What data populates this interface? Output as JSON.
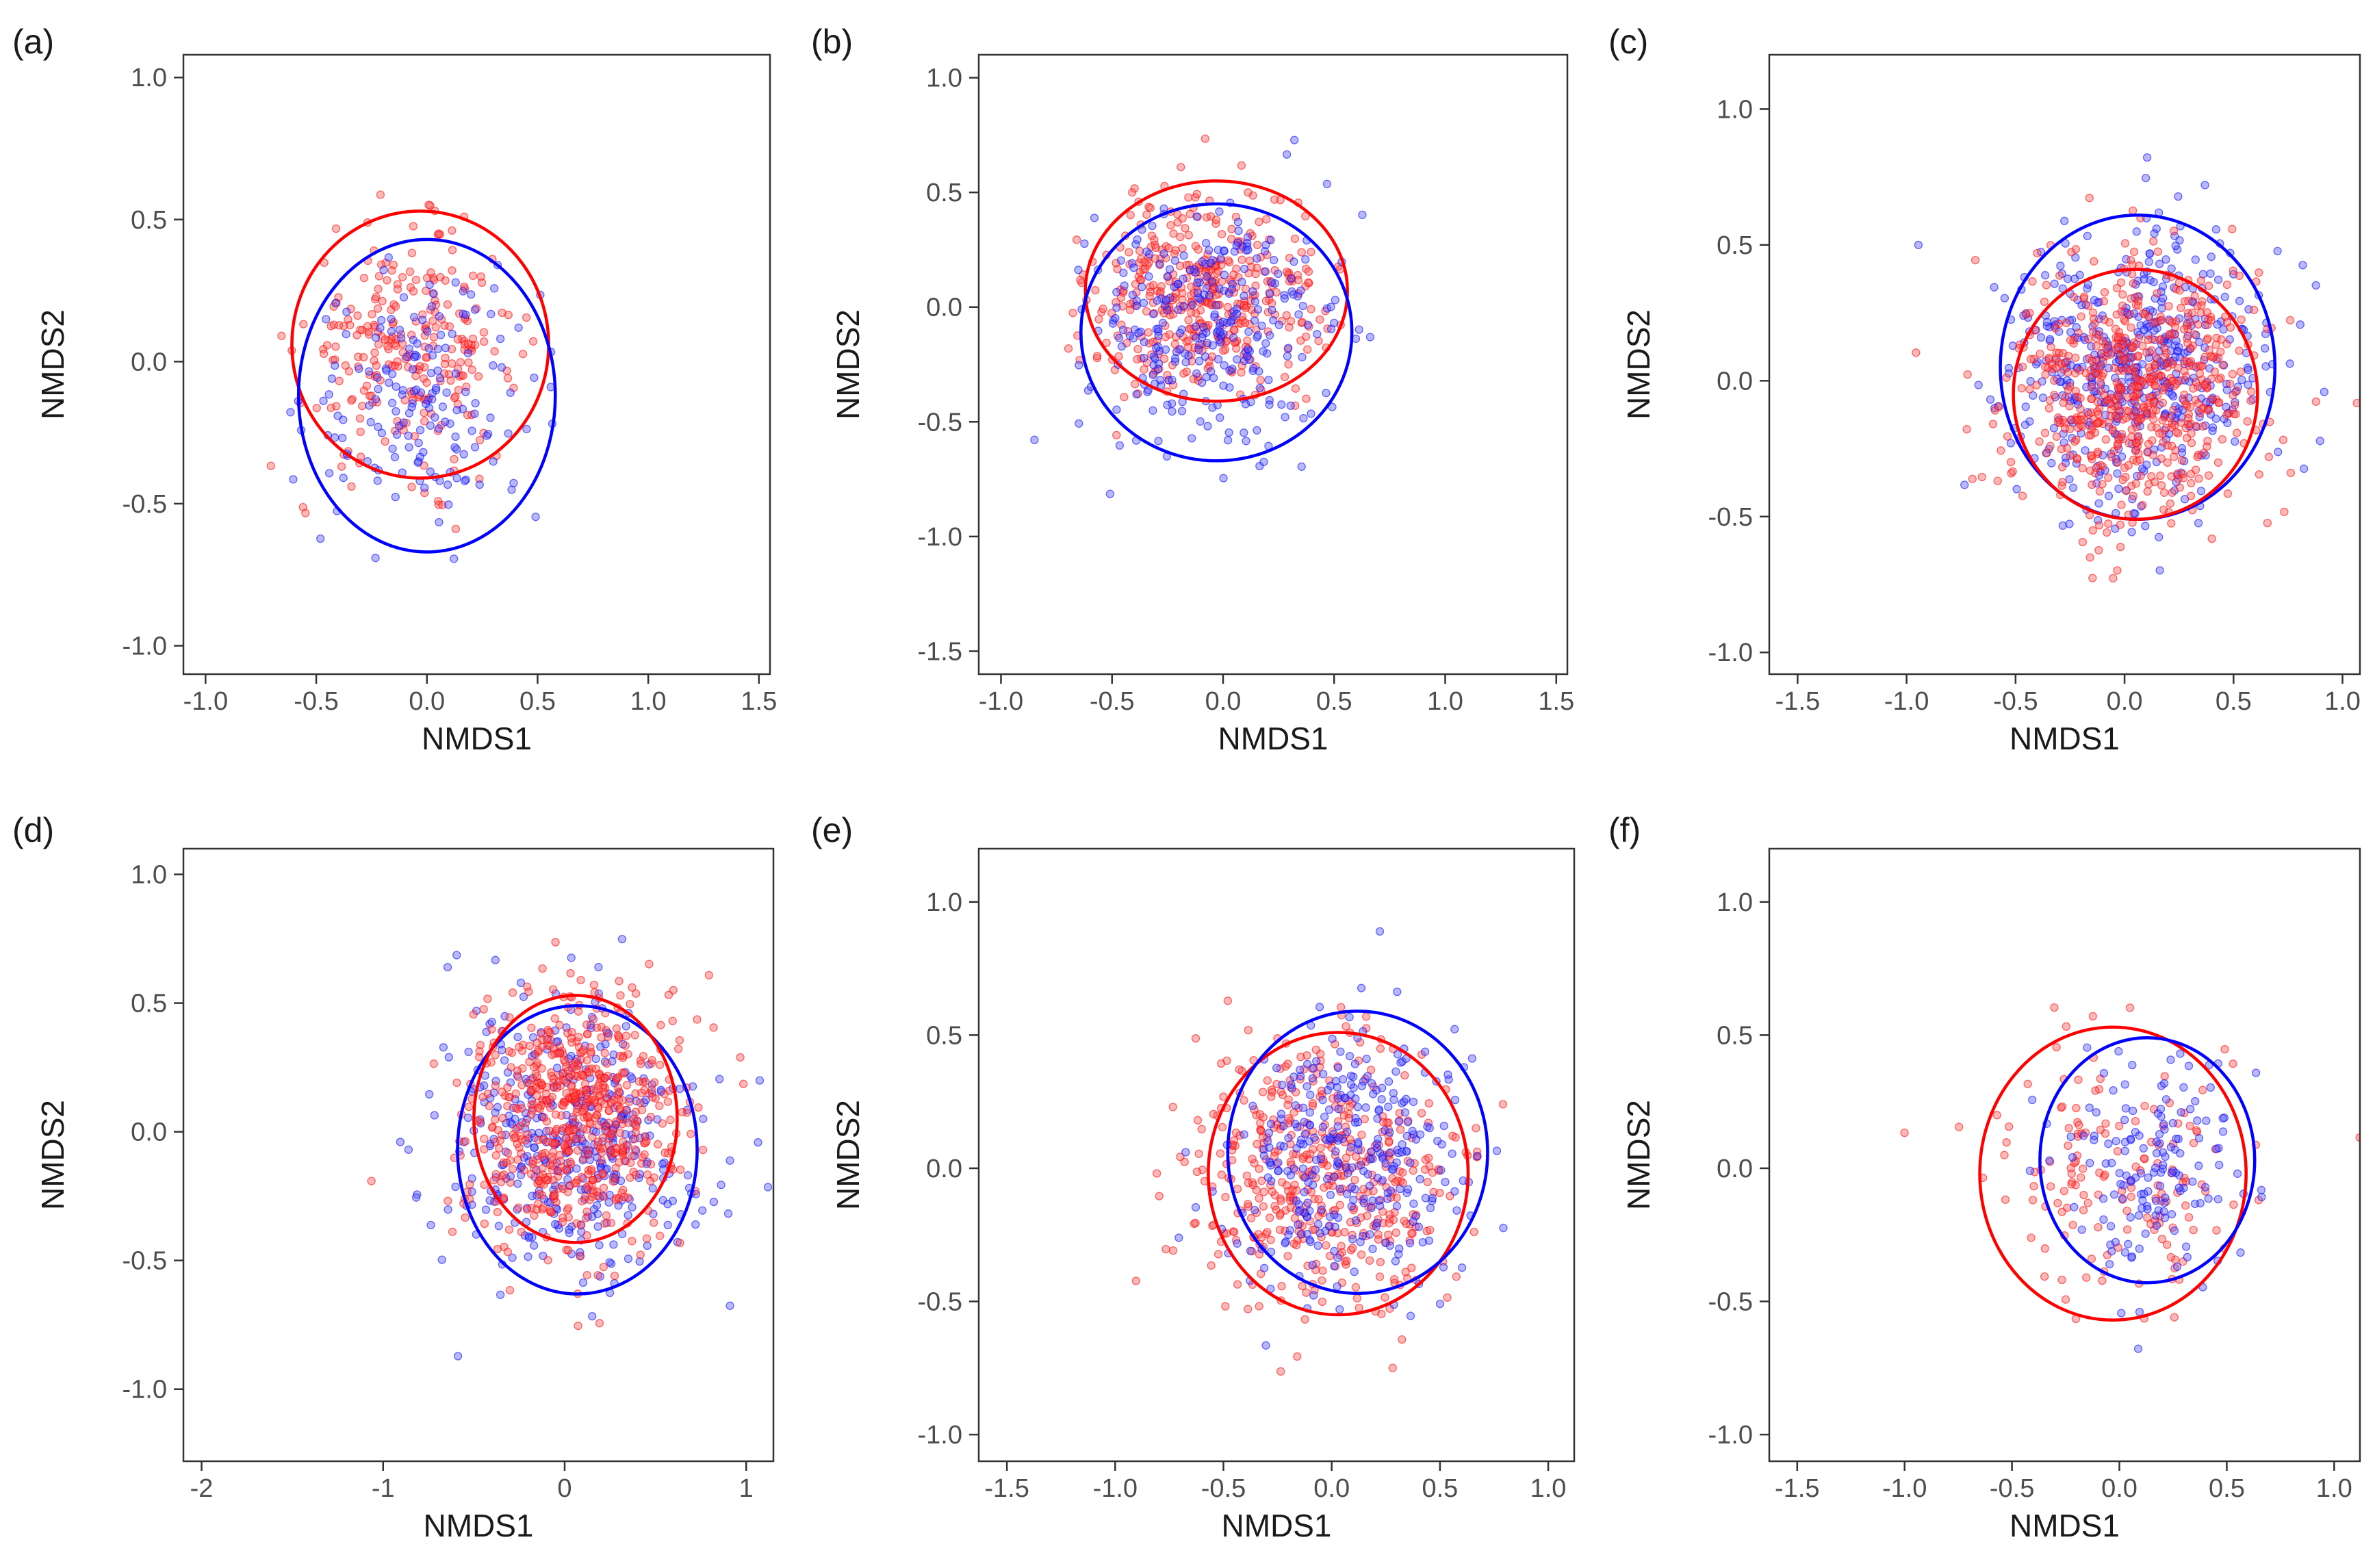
{
  "figure": {
    "colors": {
      "red": "#ff0000",
      "blue": "#0000ff",
      "red_point": "#ff4d4d",
      "blue_point": "#4d4dff"
    }
  },
  "chart_data": [
    {
      "type": "scatter",
      "panel_label": "(a)",
      "xlabel": "NMDS1",
      "ylabel": "NMDS2",
      "xlim": [
        -1.1,
        1.55
      ],
      "ylim": [
        -1.1,
        1.08
      ],
      "xticks": [
        -1.0,
        -0.5,
        0.0,
        0.5,
        1.0,
        1.5
      ],
      "xtick_labels": [
        "-1.0",
        "-0.5",
        "0.0",
        "0.5",
        "1.0",
        "1.5"
      ],
      "yticks": [
        -1.0,
        -0.5,
        0.0,
        0.5,
        1.0
      ],
      "ytick_labels": [
        "-1.0",
        "-0.5",
        "0.0",
        "0.5",
        "1.0"
      ],
      "grid": false,
      "series": [
        {
          "color": "red",
          "n_points": 260,
          "center": [
            -0.08,
            0.04
          ],
          "spread": [
            0.24,
            0.2
          ],
          "ellipse": {
            "center": [
              -0.03,
              0.06
            ],
            "radii": [
              0.58,
              0.47
            ]
          }
        },
        {
          "color": "blue",
          "n_points": 170,
          "center": [
            0.0,
            -0.12
          ],
          "spread": [
            0.26,
            0.22
          ],
          "ellipse": {
            "center": [
              0.0,
              -0.12
            ],
            "radii": [
              0.58,
              0.55
            ]
          }
        }
      ]
    },
    {
      "type": "scatter",
      "panel_label": "(b)",
      "xlabel": "NMDS1",
      "ylabel": "NMDS2",
      "xlim": [
        -1.1,
        1.55
      ],
      "ylim": [
        -1.6,
        1.1
      ],
      "xticks": [
        -1.0,
        -0.5,
        0.0,
        0.5,
        1.0,
        1.5
      ],
      "xtick_labels": [
        "-1.0",
        "-0.5",
        "0.0",
        "0.5",
        "1.0",
        "1.5"
      ],
      "yticks": [
        -1.5,
        -1.0,
        -0.5,
        0.0,
        0.5,
        1.0
      ],
      "ytick_labels": [
        "-1.5",
        "-1.0",
        "-0.5",
        "0.0",
        "0.5",
        "1.0"
      ],
      "grid": false,
      "series": [
        {
          "color": "red",
          "n_points": 420,
          "center": [
            -0.08,
            0.03
          ],
          "spread": [
            0.25,
            0.22
          ],
          "ellipse": {
            "center": [
              -0.03,
              0.07
            ],
            "radii": [
              0.59,
              0.48
            ]
          }
        },
        {
          "color": "blue",
          "n_points": 300,
          "center": [
            -0.05,
            -0.08
          ],
          "spread": [
            0.28,
            0.25
          ],
          "ellipse": {
            "center": [
              -0.03,
              -0.11
            ],
            "radii": [
              0.61,
              0.56
            ]
          }
        }
      ]
    },
    {
      "type": "scatter",
      "panel_label": "(c)",
      "xlabel": "NMDS1",
      "ylabel": "NMDS2",
      "xlim": [
        -1.63,
        1.08
      ],
      "ylim": [
        -1.08,
        1.2
      ],
      "xticks": [
        -1.5,
        -1.0,
        -0.5,
        0.0,
        0.5,
        1.0
      ],
      "xtick_labels": [
        "-1.5",
        "-1.0",
        "-0.5",
        "0.0",
        "0.5",
        "1.0"
      ],
      "yticks": [
        -1.0,
        -0.5,
        0.0,
        0.5,
        1.0
      ],
      "ytick_labels": [
        "-1.0",
        "-0.5",
        "0.0",
        "0.5",
        "1.0"
      ],
      "grid": false,
      "series": [
        {
          "color": "blue",
          "n_points": 520,
          "center": [
            0.03,
            0.04
          ],
          "spread": [
            0.3,
            0.26
          ],
          "ellipse": {
            "center": [
              0.06,
              0.05
            ],
            "radii": [
              0.63,
              0.56
            ]
          }
        },
        {
          "color": "red",
          "n_points": 620,
          "center": [
            0.06,
            -0.03
          ],
          "spread": [
            0.3,
            0.24
          ],
          "ellipse": {
            "center": [
              0.05,
              -0.05
            ],
            "radii": [
              0.56,
              0.46
            ]
          }
        }
      ]
    },
    {
      "type": "scatter",
      "panel_label": "(d)",
      "xlabel": "NMDS1",
      "ylabel": "NMDS2",
      "xlim": [
        -2.1,
        1.15
      ],
      "ylim": [
        -1.28,
        1.1
      ],
      "xticks": [
        -2,
        -1,
        0,
        1
      ],
      "xtick_labels": [
        "-2",
        "-1",
        "0",
        "1"
      ],
      "yticks": [
        -1.0,
        -0.5,
        0.0,
        0.5,
        1.0
      ],
      "ytick_labels": [
        "-1.0",
        "-0.5",
        "0.0",
        "0.5",
        "1.0"
      ],
      "grid": false,
      "series": [
        {
          "color": "blue",
          "n_points": 420,
          "center": [
            0.05,
            -0.03
          ],
          "spread": [
            0.35,
            0.27
          ],
          "ellipse": {
            "center": [
              0.07,
              -0.07
            ],
            "radii": [
              0.66,
              0.56
            ]
          }
        },
        {
          "color": "red",
          "n_points": 650,
          "center": [
            0.06,
            0.05
          ],
          "spread": [
            0.3,
            0.25
          ],
          "ellipse": {
            "center": [
              0.06,
              0.05
            ],
            "radii": [
              0.56,
              0.48
            ]
          }
        }
      ]
    },
    {
      "type": "scatter",
      "panel_label": "(e)",
      "xlabel": "NMDS1",
      "ylabel": "NMDS2",
      "xlim": [
        -1.63,
        1.12
      ],
      "ylim": [
        -1.1,
        1.2
      ],
      "xticks": [
        -1.5,
        -1.0,
        -0.5,
        0.0,
        0.5,
        1.0
      ],
      "xtick_labels": [
        "-1.5",
        "-1.0",
        "-0.5",
        "0.0",
        "0.5",
        "1.0"
      ],
      "yticks": [
        -1.0,
        -0.5,
        0.0,
        0.5,
        1.0
      ],
      "ytick_labels": [
        "-1.0",
        "-0.5",
        "0.0",
        "0.5",
        "1.0"
      ],
      "grid": false,
      "series": [
        {
          "color": "red",
          "n_points": 480,
          "center": [
            -0.05,
            -0.03
          ],
          "spread": [
            0.32,
            0.26
          ],
          "ellipse": {
            "center": [
              0.03,
              -0.02
            ],
            "radii": [
              0.6,
              0.53
            ]
          }
        },
        {
          "color": "blue",
          "n_points": 320,
          "center": [
            0.08,
            0.05
          ],
          "spread": [
            0.29,
            0.25
          ],
          "ellipse": {
            "center": [
              0.12,
              0.06
            ],
            "radii": [
              0.6,
              0.53
            ]
          }
        }
      ]
    },
    {
      "type": "scatter",
      "panel_label": "(f)",
      "xlabel": "NMDS1",
      "ylabel": "NMDS2",
      "xlim": [
        -1.63,
        1.12
      ],
      "ylim": [
        -1.1,
        1.2
      ],
      "xticks": [
        -1.5,
        -1.0,
        -0.5,
        0.0,
        0.5,
        1.0
      ],
      "xtick_labels": [
        "-1.5",
        "-1.0",
        "-0.5",
        "0.0",
        "0.5",
        "1.0"
      ],
      "yticks": [
        -1.0,
        -0.5,
        0.0,
        0.5,
        1.0
      ],
      "ytick_labels": [
        "-1.0",
        "-0.5",
        "0.0",
        "0.5",
        "1.0"
      ],
      "grid": false,
      "series": [
        {
          "color": "red",
          "n_points": 150,
          "center": [
            -0.02,
            -0.02
          ],
          "spread": [
            0.3,
            0.24
          ],
          "ellipse": {
            "center": [
              -0.03,
              -0.02
            ],
            "radii": [
              0.62,
              0.55
            ]
          }
        },
        {
          "color": "blue",
          "n_points": 150,
          "center": [
            0.13,
            0.02
          ],
          "spread": [
            0.22,
            0.2
          ],
          "ellipse": {
            "center": [
              0.13,
              0.03
            ],
            "radii": [
              0.5,
              0.46
            ]
          }
        }
      ]
    }
  ]
}
